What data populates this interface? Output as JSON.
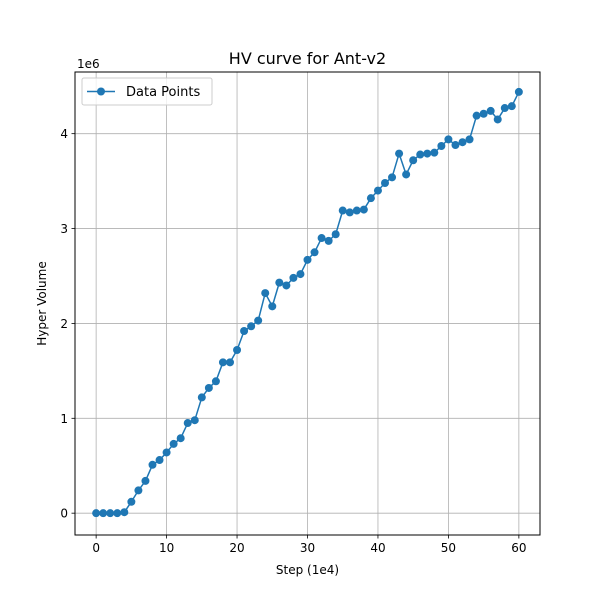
{
  "chart_data": {
    "type": "line",
    "title": "HV curve for Ant-v2",
    "xlabel": "Step (1e4)",
    "ylabel": "Hyper Volume",
    "y_offset_label": "1e6",
    "xlim": [
      -3,
      63
    ],
    "ylim": [
      -0.23,
      4.65
    ],
    "y_scale_factor": 1000000,
    "x_ticks": [
      0,
      10,
      20,
      30,
      40,
      50,
      60
    ],
    "x_tick_labels": [
      "0",
      "10",
      "20",
      "30",
      "40",
      "50",
      "60"
    ],
    "y_ticks": [
      0,
      1,
      2,
      3,
      4
    ],
    "y_tick_labels": [
      "0",
      "1",
      "2",
      "3",
      "4"
    ],
    "grid": true,
    "legend_position": "top-left",
    "series": [
      {
        "name": "Data Points",
        "color": "#1f77b4",
        "marker": "circle",
        "x": [
          0,
          1,
          2,
          3,
          4,
          5,
          6,
          7,
          8,
          9,
          10,
          11,
          12,
          13,
          14,
          15,
          16,
          17,
          18,
          19,
          20,
          21,
          22,
          23,
          24,
          25,
          26,
          27,
          28,
          29,
          30,
          31,
          32,
          33,
          34,
          35,
          36,
          37,
          38,
          39,
          40,
          41,
          42,
          43,
          44,
          45,
          46,
          47,
          48,
          49,
          50,
          51,
          52,
          53,
          54,
          55,
          56,
          57,
          58,
          59,
          60
        ],
        "values": [
          0.0,
          0.0,
          0.0,
          0.0,
          0.01,
          0.12,
          0.24,
          0.34,
          0.51,
          0.56,
          0.64,
          0.73,
          0.79,
          0.95,
          0.98,
          1.22,
          1.32,
          1.39,
          1.59,
          1.59,
          1.72,
          1.92,
          1.97,
          2.03,
          2.32,
          2.18,
          2.43,
          2.4,
          2.48,
          2.52,
          2.67,
          2.75,
          2.9,
          2.87,
          2.94,
          3.19,
          3.17,
          3.19,
          3.2,
          3.32,
          3.4,
          3.48,
          3.54,
          3.79,
          3.57,
          3.72,
          3.78,
          3.79,
          3.8,
          3.87,
          3.94,
          3.88,
          3.91,
          3.94,
          4.19,
          4.21,
          4.24,
          4.15,
          4.27,
          4.29,
          4.44
        ]
      }
    ]
  }
}
